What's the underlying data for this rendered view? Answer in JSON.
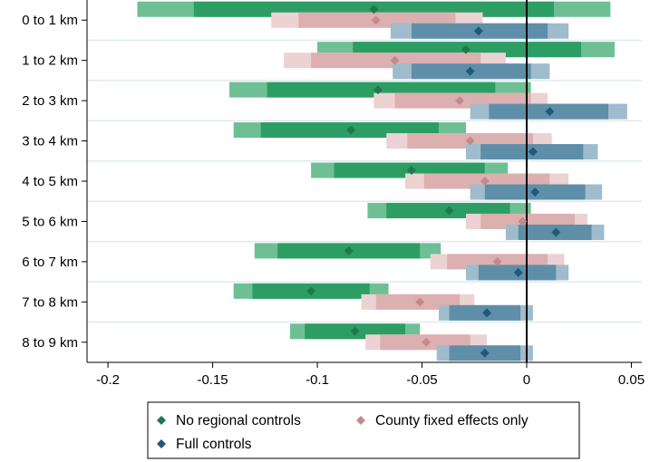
{
  "chart_data": {
    "type": "coefficient-plot",
    "orientation": "horizontal",
    "categories": [
      "0 to 1 km",
      "1 to 2 km",
      "2 to 3 km",
      "3 to 4 km",
      "4 to 5 km",
      "5 to 6 km",
      "6 to 7 km",
      "7 to 8 km",
      "8 to 9 km"
    ],
    "xlim": [
      -0.21,
      0.055
    ],
    "x_ticks": [
      -0.2,
      -0.15,
      -0.1,
      -0.05,
      0,
      0.05
    ],
    "x_tick_labels": [
      "-0.2",
      "-0.15",
      "-0.1",
      "-0.05",
      "0",
      "0.05"
    ],
    "reference_line_x": 0,
    "grid": "horizontal separators between categories",
    "legend_position": "bottom",
    "series": [
      {
        "name": "No regional controls",
        "color_point": "#1e7a4e",
        "color_ci_inner": "#2d9e63",
        "color_ci_outer": "#6fbf94",
        "estimates": [
          -0.073,
          -0.029,
          -0.071,
          -0.084,
          -0.055,
          -0.037,
          -0.085,
          -0.103,
          -0.082
        ],
        "ci_inner": [
          [
            -0.159,
            0.013
          ],
          [
            -0.083,
            0.026
          ],
          [
            -0.124,
            -0.015
          ],
          [
            -0.127,
            -0.042
          ],
          [
            -0.092,
            -0.02
          ],
          [
            -0.067,
            -0.008
          ],
          [
            -0.119,
            -0.051
          ],
          [
            -0.131,
            -0.075
          ],
          [
            -0.106,
            -0.058
          ]
        ],
        "ci_outer": [
          [
            -0.186,
            0.04
          ],
          [
            -0.1,
            0.042
          ],
          [
            -0.142,
            0.002
          ],
          [
            -0.14,
            -0.029
          ],
          [
            -0.103,
            -0.009
          ],
          [
            -0.076,
            0.002
          ],
          [
            -0.13,
            -0.041
          ],
          [
            -0.14,
            -0.066
          ],
          [
            -0.113,
            -0.051
          ]
        ]
      },
      {
        "name": "County fixed effects only",
        "color_point": "#c48a8a",
        "color_ci_inner": "#dcb0b0",
        "color_ci_outer": "#ecd2d2",
        "estimates": [
          -0.072,
          -0.063,
          -0.032,
          -0.027,
          -0.02,
          -0.002,
          -0.014,
          -0.051,
          -0.048
        ],
        "ci_inner": [
          [
            -0.109,
            -0.034
          ],
          [
            -0.103,
            -0.022
          ],
          [
            -0.063,
            0.002
          ],
          [
            -0.057,
            0.003
          ],
          [
            -0.049,
            0.011
          ],
          [
            -0.022,
            0.023
          ],
          [
            -0.038,
            0.01
          ],
          [
            -0.072,
            -0.032
          ],
          [
            -0.07,
            -0.027
          ]
        ],
        "ci_outer": [
          [
            -0.122,
            -0.021
          ],
          [
            -0.116,
            -0.01
          ],
          [
            -0.073,
            0.01
          ],
          [
            -0.067,
            0.012
          ],
          [
            -0.058,
            0.02
          ],
          [
            -0.029,
            0.029
          ],
          [
            -0.046,
            0.018
          ],
          [
            -0.079,
            -0.025
          ],
          [
            -0.077,
            -0.019
          ]
        ]
      },
      {
        "name": "Full controls",
        "color_point": "#1f5a78",
        "color_ci_inner": "#5f8fa8",
        "color_ci_outer": "#9fbccc",
        "estimates": [
          -0.023,
          -0.027,
          0.011,
          0.003,
          0.004,
          0.014,
          -0.004,
          -0.019,
          -0.02
        ],
        "ci_inner": [
          [
            -0.055,
            0.01
          ],
          [
            -0.055,
            0.002
          ],
          [
            -0.018,
            0.039
          ],
          [
            -0.022,
            0.027
          ],
          [
            -0.02,
            0.028
          ],
          [
            -0.004,
            0.031
          ],
          [
            -0.023,
            0.014
          ],
          [
            -0.037,
            -0.003
          ],
          [
            -0.037,
            -0.003
          ]
        ],
        "ci_outer": [
          [
            -0.065,
            0.02
          ],
          [
            -0.064,
            0.011
          ],
          [
            -0.027,
            0.048
          ],
          [
            -0.029,
            0.034
          ],
          [
            -0.027,
            0.036
          ],
          [
            -0.01,
            0.037
          ],
          [
            -0.029,
            0.02
          ],
          [
            -0.042,
            0.003
          ],
          [
            -0.043,
            0.003
          ]
        ]
      }
    ]
  }
}
